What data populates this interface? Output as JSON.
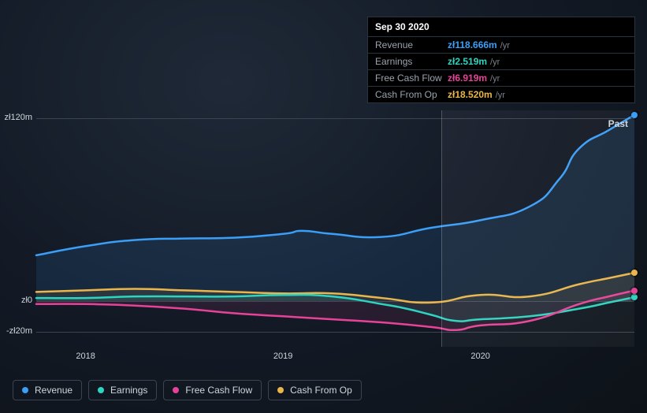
{
  "tooltip": {
    "date": "Sep 30 2020",
    "rows": [
      {
        "label": "Revenue",
        "value": "zł118.666m",
        "suffix": "/yr",
        "color": "#3b9ef7"
      },
      {
        "label": "Earnings",
        "value": "zł2.519m",
        "suffix": "/yr",
        "color": "#2dd4bf"
      },
      {
        "label": "Free Cash Flow",
        "value": "zł6.919m",
        "suffix": "/yr",
        "color": "#e64398"
      },
      {
        "label": "Cash From Op",
        "value": "zł18.520m",
        "suffix": "/yr",
        "color": "#eab54b"
      }
    ]
  },
  "chart": {
    "past_label": "Past",
    "y_axis": {
      "ticks": [
        {
          "value": 120,
          "label": "zł120m"
        },
        {
          "value": 0,
          "label": "zł0"
        },
        {
          "value": -20,
          "label": "-zł20m"
        }
      ],
      "min": -30,
      "max": 125
    },
    "x_axis": {
      "min": 2017.75,
      "max": 2020.78,
      "hover_x": 2020.78,
      "hover_band_start": 2019.8,
      "ticks": [
        {
          "value": 2018,
          "label": "2018"
        },
        {
          "value": 2019,
          "label": "2019"
        },
        {
          "value": 2020,
          "label": "2020"
        }
      ]
    },
    "gridline_color": "#3a434f",
    "series": [
      {
        "name": "revenue",
        "label": "Revenue",
        "color": "#3b9ef7",
        "fill": "rgba(59,158,247,0.12)",
        "width": 2.5,
        "points": [
          [
            2017.75,
            30
          ],
          [
            2018.0,
            36
          ],
          [
            2018.25,
            40
          ],
          [
            2018.5,
            41
          ],
          [
            2018.75,
            41.5
          ],
          [
            2019.0,
            44
          ],
          [
            2019.1,
            46
          ],
          [
            2019.25,
            44
          ],
          [
            2019.5,
            42
          ],
          [
            2019.75,
            48
          ],
          [
            2020.0,
            53
          ],
          [
            2020.25,
            62
          ],
          [
            2020.4,
            80
          ],
          [
            2020.5,
            100
          ],
          [
            2020.65,
            112
          ],
          [
            2020.78,
            122
          ]
        ]
      },
      {
        "name": "cash-from-op",
        "label": "Cash From Op",
        "color": "#eab54b",
        "fill": "rgba(234,181,75,0.10)",
        "width": 2.5,
        "points": [
          [
            2017.75,
            6
          ],
          [
            2018.0,
            7
          ],
          [
            2018.25,
            8
          ],
          [
            2018.5,
            7
          ],
          [
            2018.75,
            6
          ],
          [
            2019.0,
            5
          ],
          [
            2019.25,
            5
          ],
          [
            2019.5,
            2
          ],
          [
            2019.75,
            -1
          ],
          [
            2020.0,
            4
          ],
          [
            2020.25,
            3
          ],
          [
            2020.5,
            11
          ],
          [
            2020.65,
            15
          ],
          [
            2020.78,
            18.5
          ]
        ]
      },
      {
        "name": "earnings",
        "label": "Earnings",
        "color": "#2dd4bf",
        "fill": "rgba(45,212,191,0.10)",
        "width": 2.5,
        "points": [
          [
            2017.75,
            2
          ],
          [
            2018.0,
            2
          ],
          [
            2018.25,
            3
          ],
          [
            2018.5,
            3
          ],
          [
            2018.75,
            3
          ],
          [
            2019.0,
            4
          ],
          [
            2019.25,
            3
          ],
          [
            2019.5,
            -2
          ],
          [
            2019.625,
            -5
          ],
          [
            2019.75,
            -9
          ],
          [
            2019.875,
            -13
          ],
          [
            2020.0,
            -12
          ],
          [
            2020.25,
            -10
          ],
          [
            2020.5,
            -5
          ],
          [
            2020.65,
            -1
          ],
          [
            2020.78,
            2.5
          ]
        ]
      },
      {
        "name": "free-cash-flow",
        "label": "Free Cash Flow",
        "color": "#e64398",
        "fill": "rgba(230,67,152,0.10)",
        "width": 2.5,
        "points": [
          [
            2017.75,
            -2
          ],
          [
            2018.0,
            -2
          ],
          [
            2018.25,
            -3
          ],
          [
            2018.5,
            -5
          ],
          [
            2018.75,
            -8
          ],
          [
            2019.0,
            -10
          ],
          [
            2019.25,
            -12
          ],
          [
            2019.5,
            -14
          ],
          [
            2019.75,
            -17
          ],
          [
            2019.875,
            -19
          ],
          [
            2020.0,
            -16
          ],
          [
            2020.25,
            -13
          ],
          [
            2020.5,
            -2
          ],
          [
            2020.65,
            3
          ],
          [
            2020.78,
            6.9
          ]
        ]
      }
    ],
    "legend_order": [
      "revenue",
      "earnings",
      "free-cash-flow",
      "cash-from-op"
    ]
  }
}
